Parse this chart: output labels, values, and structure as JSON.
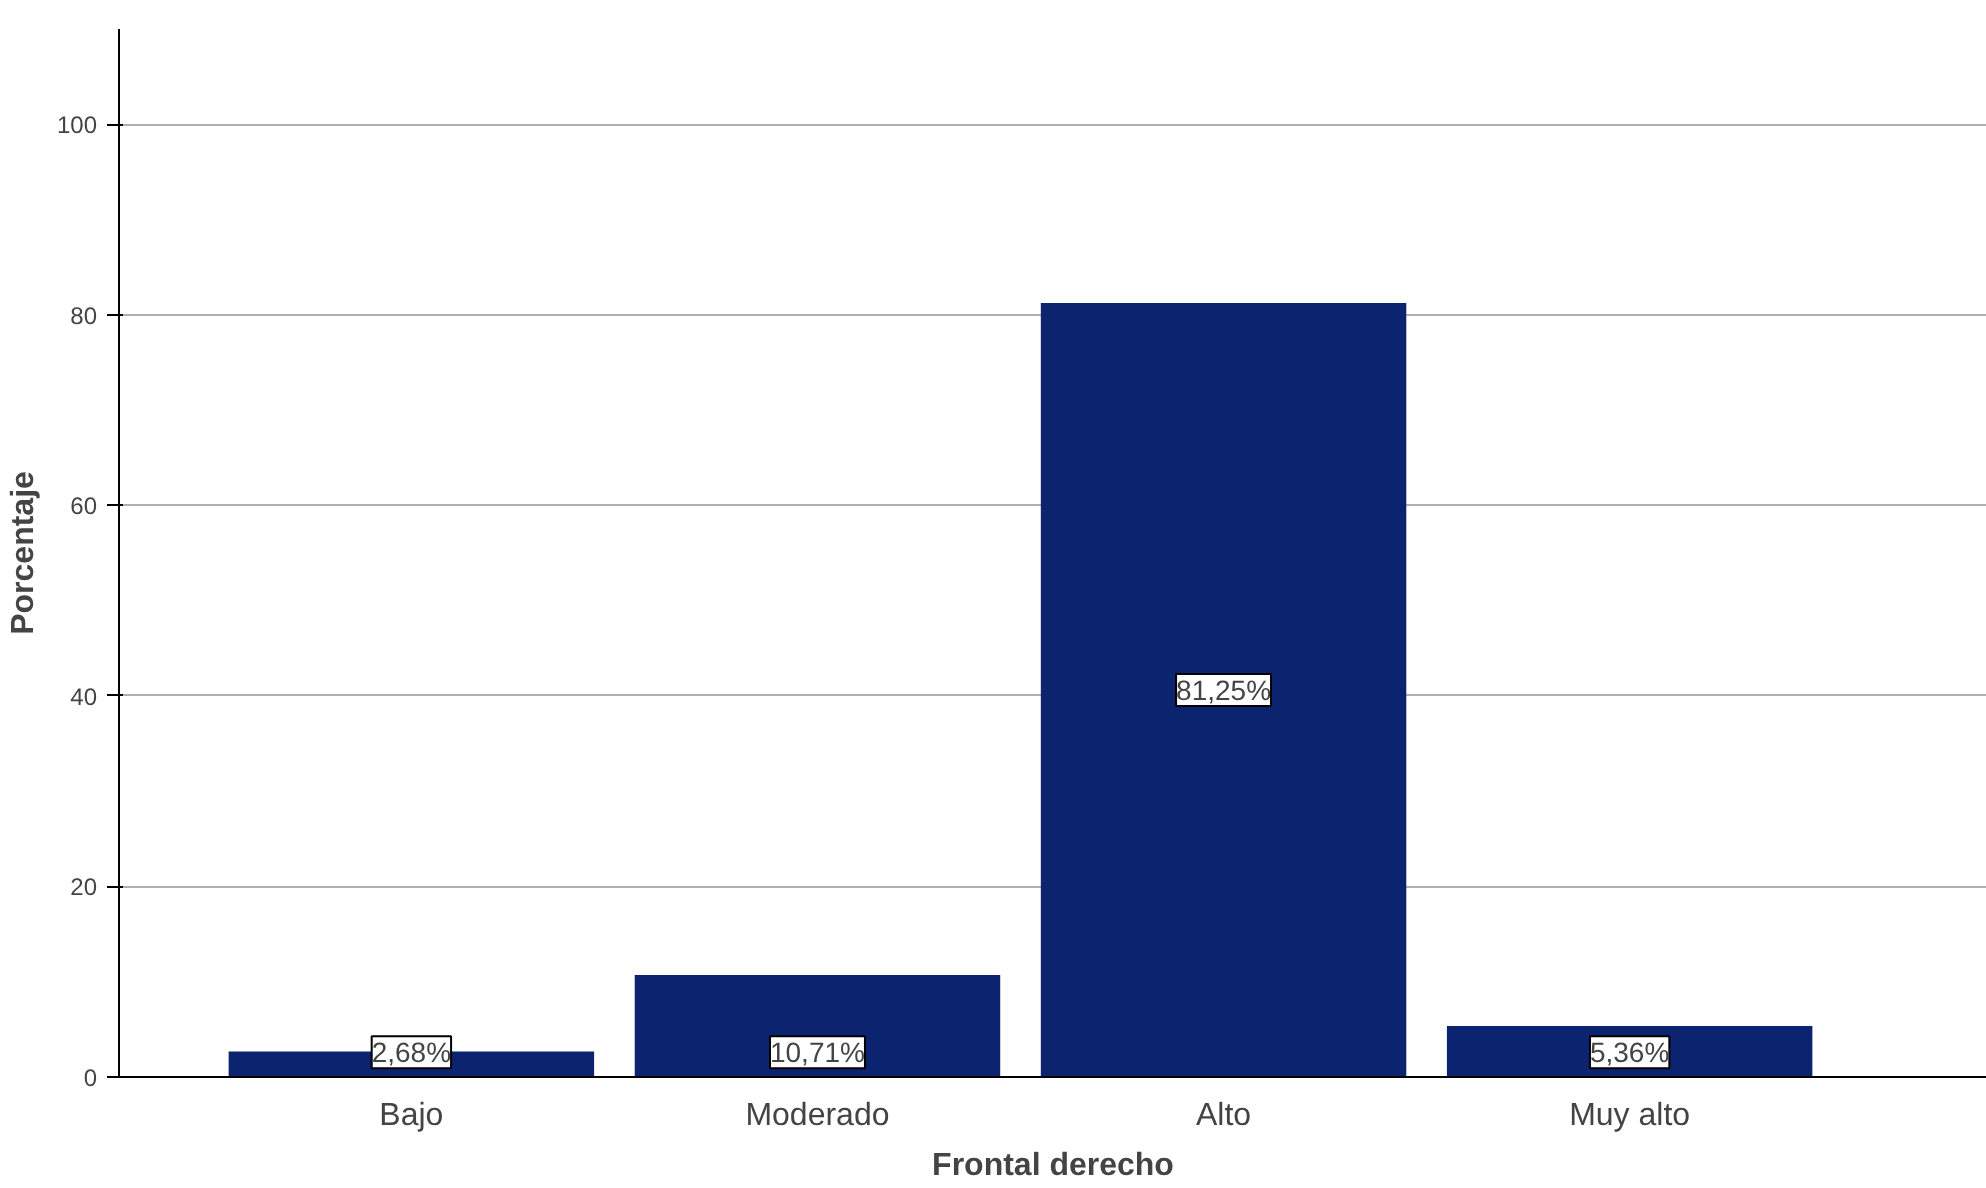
{
  "chart_data": {
    "type": "bar",
    "xlabel": "Frontal derecho",
    "ylabel": "Porcentaje",
    "categories": [
      "Bajo",
      "Moderado",
      "Alto",
      "Muy alto"
    ],
    "values": [
      2.68,
      10.71,
      81.25,
      5.36
    ],
    "value_labels": [
      "2,68%",
      "10,71%",
      "81,25%",
      "5,36%"
    ],
    "color": "#0c2470",
    "ylim": [
      0,
      110
    ],
    "yticks": [
      0,
      20,
      40,
      60,
      80,
      100
    ],
    "grid": "y"
  }
}
